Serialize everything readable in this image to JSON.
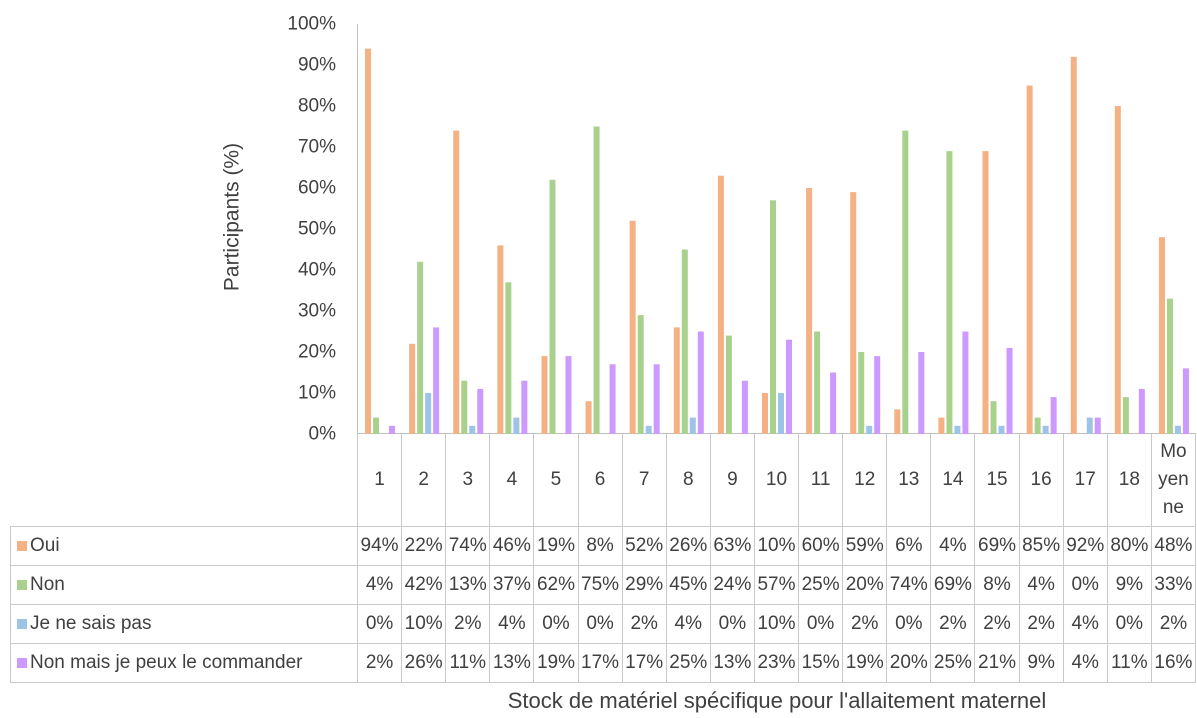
{
  "chart_data": {
    "type": "bar",
    "categories": [
      "1",
      "2",
      "3",
      "4",
      "5",
      "6",
      "7",
      "8",
      "9",
      "10",
      "11",
      "12",
      "13",
      "14",
      "15",
      "16",
      "17",
      "18",
      "Moyenne"
    ],
    "series": [
      {
        "name": "Oui",
        "color": "#F4B183",
        "values": [
          94,
          22,
          74,
          46,
          19,
          8,
          52,
          26,
          63,
          10,
          60,
          59,
          6,
          4,
          69,
          85,
          92,
          80,
          48
        ]
      },
      {
        "name": "Non",
        "color": "#A9D18E",
        "values": [
          4,
          42,
          13,
          37,
          62,
          75,
          29,
          45,
          24,
          57,
          25,
          20,
          74,
          69,
          8,
          4,
          0,
          9,
          33
        ]
      },
      {
        "name": "Je ne sais pas",
        "color": "#9DC3E6",
        "values": [
          0,
          10,
          2,
          4,
          0,
          0,
          2,
          4,
          0,
          10,
          0,
          2,
          0,
          2,
          2,
          2,
          4,
          0,
          2
        ]
      },
      {
        "name": "Non mais je peux le commander",
        "color": "#CC99FF",
        "values": [
          2,
          26,
          11,
          13,
          19,
          17,
          17,
          25,
          13,
          23,
          15,
          19,
          20,
          25,
          21,
          9,
          4,
          11,
          16
        ]
      }
    ],
    "xlabel": "Stock de matériel spécifique pour l'allaitement maternel",
    "ylabel": "Participants (%)",
    "unit": "%",
    "ylim": [
      0,
      100
    ],
    "y_ticks": [
      0,
      10,
      20,
      30,
      40,
      50,
      60,
      70,
      80,
      90,
      100
    ],
    "grid": false,
    "legend": "bottom",
    "data_table": true,
    "text_color": "#404040",
    "axis_color": "#BFBFBF"
  }
}
